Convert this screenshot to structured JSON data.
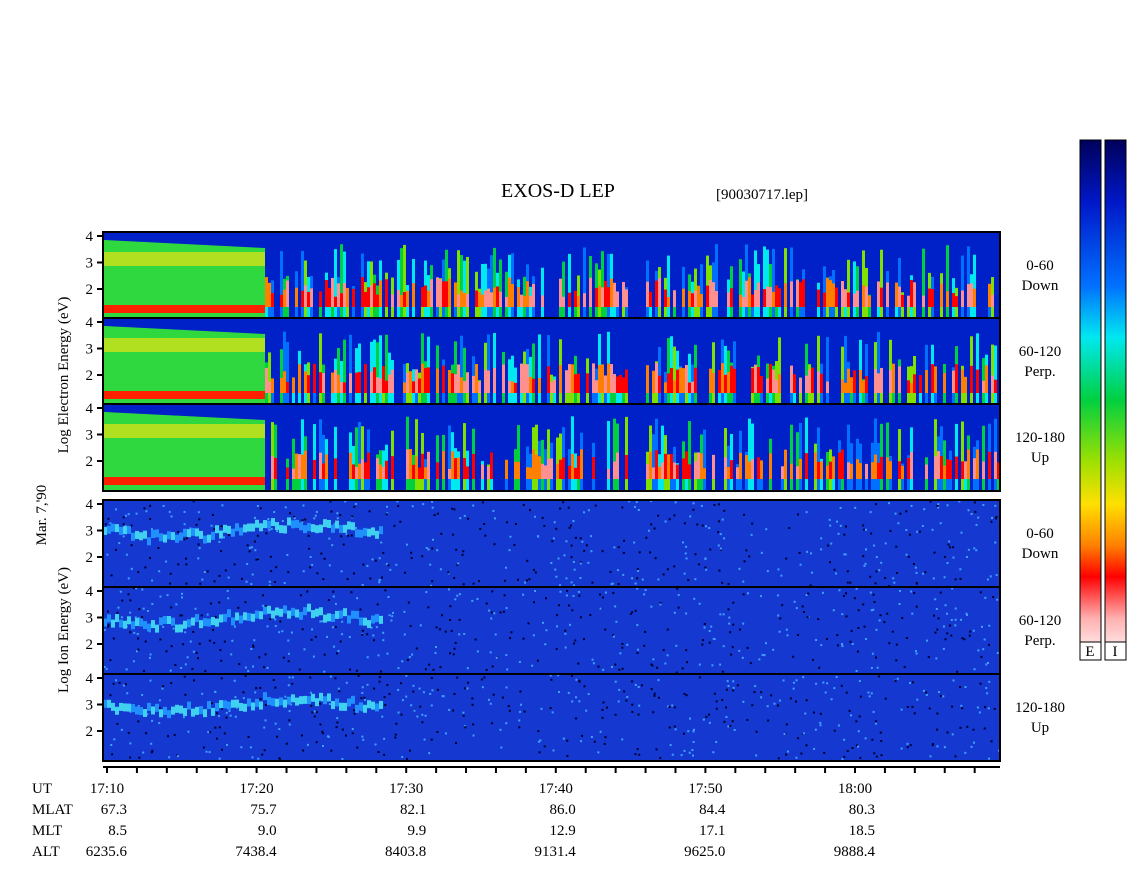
{
  "title": "EXOS-D LEP",
  "file": "[90030717.lep]",
  "date": "Mar. 7,'90",
  "electron_label": "Log Electron Energy (eV)",
  "ion_label": "Log Ion Energy (eV)",
  "panels": [
    {
      "species": "electron",
      "angle": "0-60",
      "direction": "Down",
      "yticks": [
        2,
        3,
        4
      ]
    },
    {
      "species": "electron",
      "angle": "60-120",
      "direction": "Perp.",
      "yticks": [
        2,
        3,
        4
      ]
    },
    {
      "species": "electron",
      "angle": "120-180",
      "direction": "Up",
      "yticks": [
        2,
        3,
        4
      ]
    },
    {
      "species": "ion",
      "angle": "0-60",
      "direction": "Down",
      "yticks": [
        2,
        3,
        4
      ]
    },
    {
      "species": "ion",
      "angle": "60-120",
      "direction": "Perp.",
      "yticks": [
        2,
        3,
        4
      ]
    },
    {
      "species": "ion",
      "angle": "120-180",
      "direction": "Up",
      "yticks": [
        2,
        3,
        4
      ]
    }
  ],
  "colorbar_labels": [
    "E",
    "I"
  ],
  "time_axis": [
    {
      "name": "UT",
      "values": [
        "17:10",
        "17:20",
        "17:30",
        "17:40",
        "17:50",
        "18:00"
      ]
    },
    {
      "name": "MLAT",
      "values": [
        "67.3",
        "75.7",
        "82.1",
        "86.0",
        "84.4",
        "80.3"
      ]
    },
    {
      "name": "MLT",
      "values": [
        "8.5",
        "9.0",
        "9.9",
        "12.9",
        "17.1",
        "18.5"
      ]
    },
    {
      "name": "ALT",
      "values": [
        "6235.6",
        "7438.4",
        "8403.8",
        "9131.4",
        "9625.0",
        "9888.4"
      ]
    }
  ]
}
